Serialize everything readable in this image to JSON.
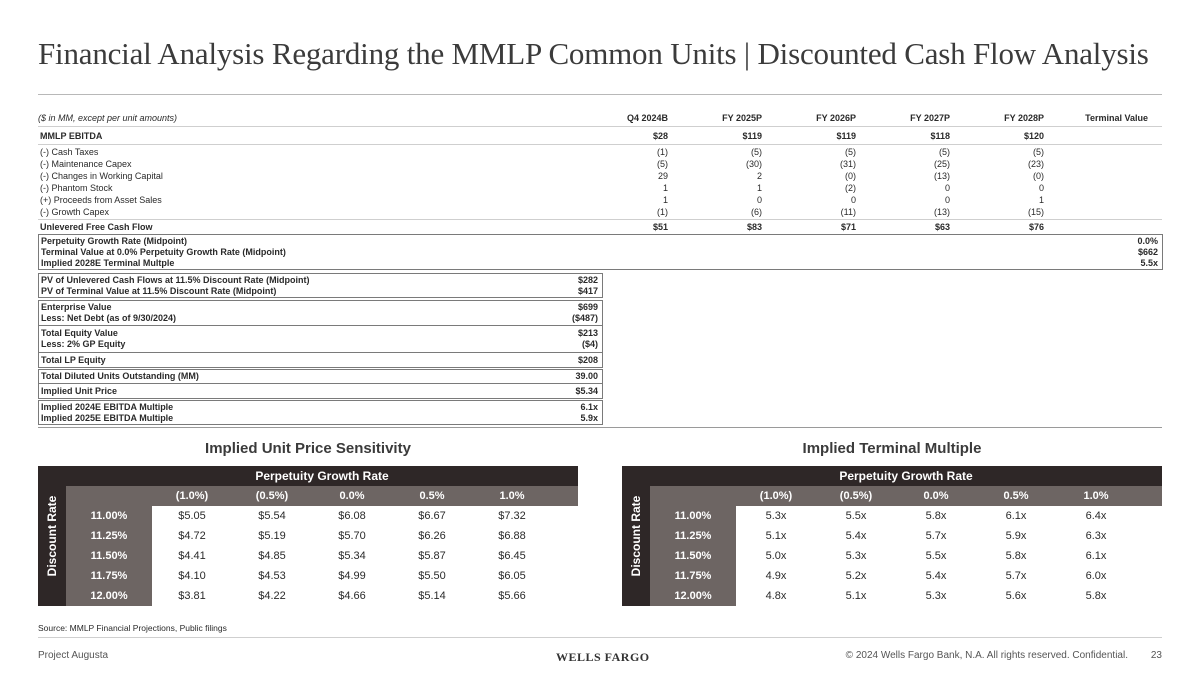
{
  "title": "Financial Analysis Regarding the MMLP Common Units | Discounted Cash Flow Analysis",
  "unit_note": "($ in MM, except per unit amounts)",
  "columns": [
    "Q4 2024B",
    "FY 2025P",
    "FY 2026P",
    "FY 2027P",
    "FY 2028P",
    "Terminal Value"
  ],
  "ebitda": {
    "label": "MMLP EBITDA",
    "values": [
      "$28",
      "$119",
      "$119",
      "$118",
      "$120"
    ]
  },
  "adjustments": [
    {
      "label": "(-) Cash Taxes",
      "values": [
        "(1)",
        "(5)",
        "(5)",
        "(5)",
        "(5)"
      ]
    },
    {
      "label": "(-) Maintenance Capex",
      "values": [
        "(5)",
        "(30)",
        "(31)",
        "(25)",
        "(23)"
      ]
    },
    {
      "label": "(-) Changes in Working Capital",
      "values": [
        "29",
        "2",
        "(0)",
        "(13)",
        "(0)"
      ]
    },
    {
      "label": "(-) Phantom Stock",
      "values": [
        "1",
        "1",
        "(2)",
        "0",
        "0"
      ]
    },
    {
      "label": "(+) Proceeds from Asset Sales",
      "values": [
        "1",
        "0",
        "0",
        "0",
        "1"
      ]
    },
    {
      "label": "(-) Growth Capex",
      "values": [
        "(1)",
        "(6)",
        "(11)",
        "(13)",
        "(15)"
      ]
    }
  ],
  "ufcf": {
    "label": "Unlevered Free Cash Flow",
    "values": [
      "$51",
      "$83",
      "$71",
      "$63",
      "$76"
    ]
  },
  "terminal": [
    {
      "label": "Perpetuity Growth Rate (Midpoint)",
      "value": "0.0%"
    },
    {
      "label": "Terminal Value at 0.0% Perpetuity Growth Rate (Midpoint)",
      "value": "$662"
    },
    {
      "label": "Implied 2028E Terminal Multple",
      "value": "5.5x"
    }
  ],
  "valuation": {
    "pv": [
      {
        "label": "PV of Unlevered Cash Flows at 11.5% Discount Rate (Midpoint)",
        "value": "$282"
      },
      {
        "label": "PV of Terminal Value at 11.5% Discount Rate (Midpoint)",
        "value": "$417"
      }
    ],
    "ev": [
      {
        "label": "Enterprise Value",
        "value": "$699"
      },
      {
        "label": "Less: Net Debt (as of 9/30/2024)",
        "value": "($487)"
      }
    ],
    "equity": [
      {
        "label": "Total Equity Value",
        "value": "$213"
      },
      {
        "label": "Less: 2% GP Equity",
        "value": "($4)"
      }
    ],
    "lp": {
      "label": "Total LP Equity",
      "value": "$208"
    },
    "units": {
      "label": "Total Diluted Units Outstanding (MM)",
      "value": "39.00"
    },
    "price": {
      "label": "Implied Unit Price",
      "value": "$5.34"
    },
    "multiples": [
      {
        "label": "Implied 2024E EBITDA Multiple",
        "value": "6.1x"
      },
      {
        "label": "Implied 2025E EBITDA Multiple",
        "value": "5.9x"
      }
    ]
  },
  "sensitivity_price": {
    "title": "Implied Unit Price Sensitivity",
    "row_axis": "Discount Rate",
    "col_axis": "Perpetuity Growth Rate",
    "cols": [
      "(1.0%)",
      "(0.5%)",
      "0.0%",
      "0.5%",
      "1.0%"
    ],
    "rows": [
      {
        "rate": "11.00%",
        "values": [
          "$5.05",
          "$5.54",
          "$6.08",
          "$6.67",
          "$7.32"
        ]
      },
      {
        "rate": "11.25%",
        "values": [
          "$4.72",
          "$5.19",
          "$5.70",
          "$6.26",
          "$6.88"
        ]
      },
      {
        "rate": "11.50%",
        "values": [
          "$4.41",
          "$4.85",
          "$5.34",
          "$5.87",
          "$6.45"
        ]
      },
      {
        "rate": "11.75%",
        "values": [
          "$4.10",
          "$4.53",
          "$4.99",
          "$5.50",
          "$6.05"
        ]
      },
      {
        "rate": "12.00%",
        "values": [
          "$3.81",
          "$4.22",
          "$4.66",
          "$5.14",
          "$5.66"
        ]
      }
    ]
  },
  "sensitivity_multiple": {
    "title": "Implied Terminal Multiple",
    "row_axis": "Discount Rate",
    "col_axis": "Perpetuity Growth Rate",
    "cols": [
      "(1.0%)",
      "(0.5%)",
      "0.0%",
      "0.5%",
      "1.0%"
    ],
    "rows": [
      {
        "rate": "11.00%",
        "values": [
          "5.3x",
          "5.5x",
          "5.8x",
          "6.1x",
          "6.4x"
        ]
      },
      {
        "rate": "11.25%",
        "values": [
          "5.1x",
          "5.4x",
          "5.7x",
          "5.9x",
          "6.3x"
        ]
      },
      {
        "rate": "11.50%",
        "values": [
          "5.0x",
          "5.3x",
          "5.5x",
          "5.8x",
          "6.1x"
        ]
      },
      {
        "rate": "11.75%",
        "values": [
          "4.9x",
          "5.2x",
          "5.4x",
          "5.7x",
          "6.0x"
        ]
      },
      {
        "rate": "12.00%",
        "values": [
          "4.8x",
          "5.1x",
          "5.3x",
          "5.6x",
          "5.8x"
        ]
      }
    ]
  },
  "source": "Source: MMLP Financial Projections, Public filings",
  "footer": {
    "project": "Project Augusta",
    "logo": "WELLS FARGO",
    "copyright": "© 2024 Wells Fargo Bank, N.A. All rights reserved. Confidential.",
    "page": "23"
  }
}
